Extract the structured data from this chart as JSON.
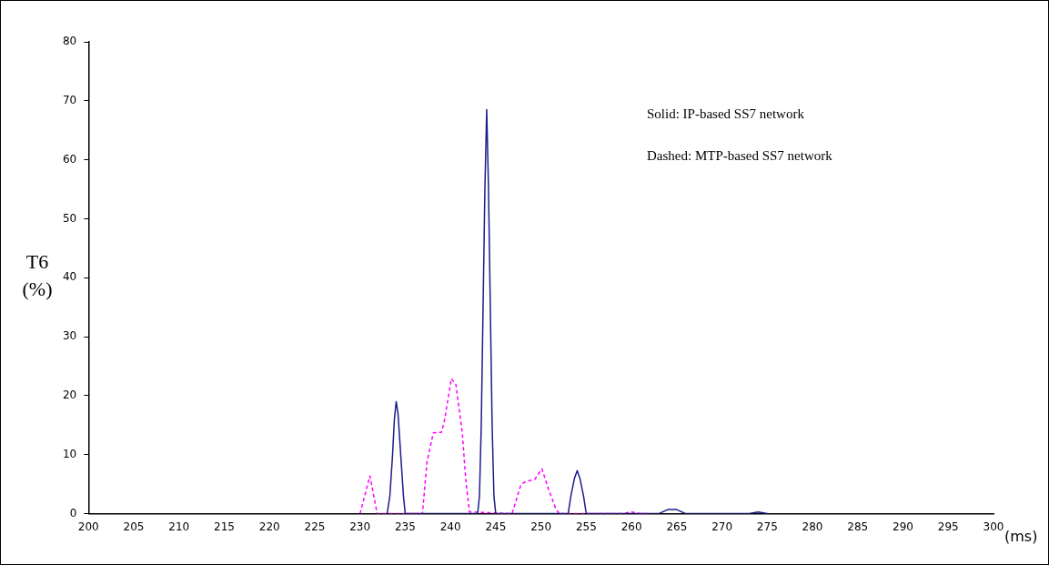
{
  "chart_data": {
    "type": "line",
    "xlabel": "(ms)",
    "ylabel": "T6 (%)",
    "xlim": [
      200,
      300
    ],
    "xticks": [
      200,
      205,
      210,
      215,
      220,
      225,
      230,
      235,
      240,
      245,
      250,
      255,
      260,
      265,
      270,
      275,
      280,
      285,
      290,
      295,
      300
    ],
    "ylim": [
      0,
      80
    ],
    "yticks": [
      0,
      10,
      20,
      30,
      40,
      50,
      60,
      70,
      80
    ],
    "grid": false,
    "legend": false,
    "marker": "none",
    "annotations": [
      "Solid: IP-based SS7 network",
      "Dashed: MTP-based SS7 network"
    ],
    "series": [
      {
        "color": "#1c1c8c",
        "line_style": "solid",
        "x": [
          233,
          233.3,
          233.6,
          233.8,
          234,
          234.2,
          234.5,
          234.8,
          235,
          243,
          243.2,
          243.4,
          243.6,
          243.8,
          244,
          244.2,
          244.4,
          244.6,
          244.8,
          245,
          253,
          253.3,
          253.7,
          254,
          254.3,
          254.7,
          255,
          263,
          264,
          265,
          266,
          273,
          274,
          275
        ],
        "values": [
          0,
          3,
          10,
          16,
          19,
          17,
          10,
          3,
          0,
          0,
          3,
          15,
          35,
          55,
          68.5,
          55,
          35,
          15,
          3,
          0,
          0,
          3,
          6,
          7.3,
          6,
          3,
          0,
          0,
          0.7,
          0.7,
          0,
          0,
          0.3,
          0
        ]
      },
      {
        "color": "#ff00ff",
        "line_style": "dashed",
        "x": [
          230,
          231.1,
          231.9,
          236.9,
          237.4,
          238.1,
          239,
          239.3,
          240.1,
          240.6,
          241.3,
          241.7,
          242.1,
          246.8,
          247.8,
          248.4,
          249.3,
          250.1,
          250.8,
          251.6,
          252,
          259,
          260,
          261,
          262
        ],
        "values": [
          0,
          6.4,
          0,
          0,
          8.7,
          13.7,
          13.8,
          15.5,
          22.9,
          21.9,
          13.8,
          5.5,
          0.3,
          0,
          5,
          5.5,
          5.8,
          7.6,
          4.3,
          1,
          0,
          0,
          0.3,
          0,
          0
        ]
      }
    ]
  }
}
